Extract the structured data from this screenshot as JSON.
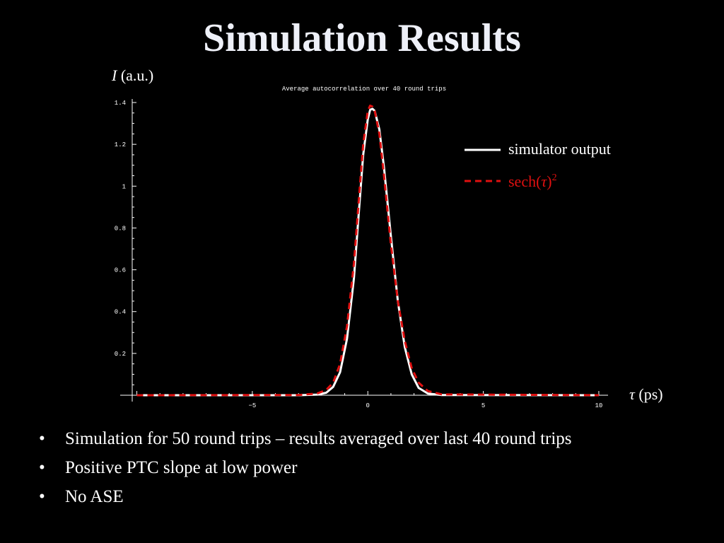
{
  "slide": {
    "title": "Simulation Results",
    "y_axis_symbol": "I",
    "y_axis_unit": "(a.u.)",
    "x_axis_symbol": "τ",
    "x_axis_unit": "(ps)",
    "bullets": [
      "Simulation for 50 round trips – results averaged over last 40 round trips",
      "Positive PTC slope at low power",
      "No ASE"
    ]
  },
  "chart_data": {
    "type": "line",
    "title": "Average autocorrelation over 40 round trips",
    "xlim": [
      -10.2,
      10.4
    ],
    "ylim": [
      0,
      1.4
    ],
    "x_ticks": [
      "-5",
      "0",
      "5",
      "10"
    ],
    "y_ticks": [
      "0.2",
      "0.4",
      "0.6",
      "0.8",
      "1",
      "1.2",
      "1.4"
    ],
    "grid": false,
    "legend_position": "top-right",
    "series": [
      {
        "name": "simulator output",
        "color": "#ffffff",
        "style": "solid",
        "x": [
          -10,
          -3,
          -2.2,
          -1.8,
          -1.5,
          -1.2,
          -0.9,
          -0.6,
          -0.4,
          -0.2,
          0,
          0.1,
          0.2,
          0.3,
          0.5,
          0.7,
          1.0,
          1.3,
          1.6,
          1.9,
          2.2,
          2.6,
          3.2,
          10
        ],
        "y": [
          0,
          0,
          0.003,
          0.012,
          0.04,
          0.11,
          0.27,
          0.56,
          0.86,
          1.15,
          1.32,
          1.365,
          1.37,
          1.36,
          1.27,
          1.09,
          0.76,
          0.45,
          0.23,
          0.1,
          0.035,
          0.008,
          0.001,
          0
        ]
      },
      {
        "name": "sech(τ)²",
        "color": "#e01010",
        "style": "dashed",
        "x": [
          -10,
          -3,
          -2.2,
          -1.8,
          -1.5,
          -1.2,
          -0.9,
          -0.6,
          -0.4,
          -0.2,
          0,
          0.1,
          0.2,
          0.3,
          0.5,
          0.7,
          1.0,
          1.3,
          1.6,
          1.9,
          2.2,
          2.6,
          3.2,
          10
        ],
        "y": [
          0,
          0.001,
          0.008,
          0.025,
          0.06,
          0.15,
          0.33,
          0.63,
          0.92,
          1.2,
          1.36,
          1.385,
          1.38,
          1.36,
          1.25,
          1.05,
          0.72,
          0.45,
          0.26,
          0.13,
          0.06,
          0.02,
          0.004,
          0
        ]
      }
    ]
  }
}
